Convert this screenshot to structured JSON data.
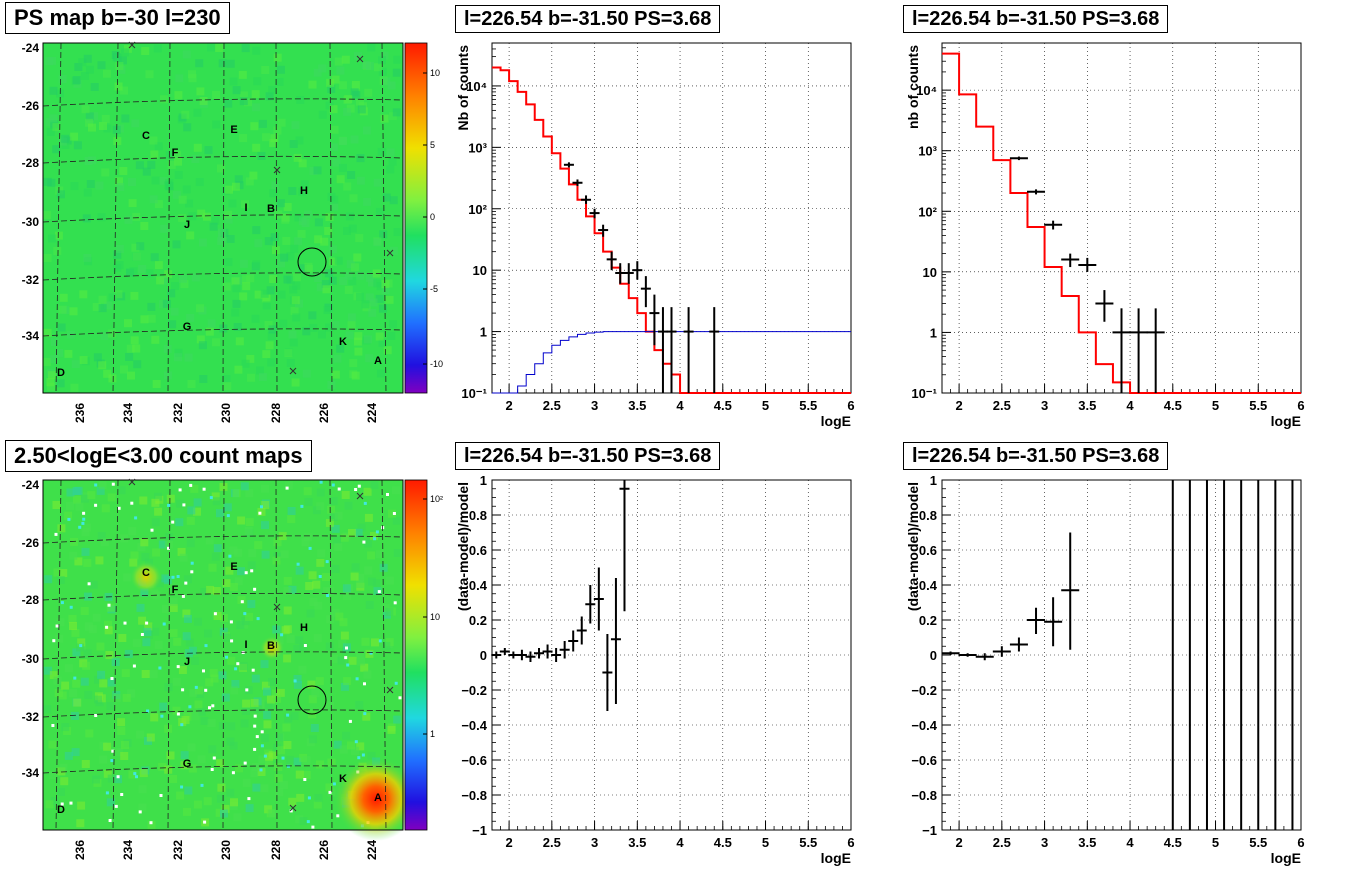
{
  "titles": {
    "ps_map": "PS map b=-30 l=230",
    "count_map": "2.50<logE<3.00 count maps",
    "spec_left": "l=226.54 b=-31.50 PS=3.68",
    "spec_right": "l=226.54 b=-31.50 PS=3.68",
    "resid_left": "l=226.54 b=-31.50 PS=3.68",
    "resid_right": "l=226.54 b=-31.50 PS=3.68"
  },
  "maps": {
    "lat_ticks": [
      "-24",
      "-26",
      "-28",
      "-30",
      "-32",
      "-34"
    ],
    "lon_ticks": [
      "236",
      "234",
      "232",
      "230",
      "228",
      "226",
      "224"
    ],
    "source_labels": [
      "C",
      "E",
      "F",
      "H",
      "I",
      "B",
      "J",
      "G",
      "K",
      "A",
      "D"
    ],
    "ps_colorbar_ticks": [
      "10",
      "5",
      "0",
      "-5",
      "-10"
    ],
    "count_colorbar_ticks": [
      "10²",
      "10",
      "1"
    ],
    "colors": {
      "ps_bg": "#33e050",
      "count_bg": "#3fe04a",
      "hot": "#ff2000"
    }
  },
  "chart_data": [
    {
      "type": "line",
      "title": "l=226.54 b=-31.50 PS=3.68",
      "xlabel": "logE",
      "ylabel": "Nb of counts",
      "xlim": [
        1.8,
        6
      ],
      "ylim": [
        0.1,
        50000
      ],
      "yscale": "log",
      "grid": true,
      "x_ticks": [
        "2",
        "2.5",
        "3",
        "3.5",
        "4",
        "4.5",
        "5",
        "5.5",
        "6"
      ],
      "y_ticks": [
        "10⁻¹",
        "1",
        "10",
        "10²",
        "10³",
        "10⁴"
      ],
      "series": [
        {
          "role": "model",
          "color": "#ff0000",
          "style": "step",
          "edges": [
            1.8,
            1.9,
            2.0,
            2.1,
            2.2,
            2.3,
            2.4,
            2.5,
            2.6,
            2.7,
            2.8,
            2.9,
            3.0,
            3.1,
            3.2,
            3.3,
            3.4,
            3.5,
            3.6,
            3.7,
            3.8,
            3.9,
            4.0,
            6.0
          ],
          "values": [
            20000,
            18000,
            12000,
            8000,
            5000,
            2800,
            1500,
            800,
            450,
            250,
            140,
            75,
            40,
            20,
            11,
            6,
            3.5,
            2,
            1,
            0.5,
            0.3,
            0.2,
            0.1
          ]
        },
        {
          "role": "exposure",
          "color": "#0000cc",
          "style": "step",
          "edges": [
            1.8,
            2.0,
            2.1,
            2.2,
            2.3,
            2.4,
            2.5,
            2.6,
            2.7,
            2.8,
            2.9,
            3.0,
            3.1,
            3.2,
            6.0
          ],
          "values": [
            0.1,
            0.1,
            0.13,
            0.2,
            0.3,
            0.45,
            0.6,
            0.72,
            0.82,
            0.9,
            0.95,
            0.98,
            1.0,
            1.0
          ]
        },
        {
          "role": "data",
          "color": "#000000",
          "points": [
            {
              "x": 2.7,
              "y": 520,
              "lo": 470,
              "hi": 570
            },
            {
              "x": 2.8,
              "y": 265,
              "lo": 235,
              "hi": 300
            },
            {
              "x": 2.9,
              "y": 140,
              "lo": 120,
              "hi": 165
            },
            {
              "x": 3.0,
              "y": 85,
              "lo": 70,
              "hi": 100
            },
            {
              "x": 3.1,
              "y": 45,
              "lo": 35,
              "hi": 55
            },
            {
              "x": 3.2,
              "y": 15,
              "lo": 10,
              "hi": 20
            },
            {
              "x": 3.3,
              "y": 9,
              "lo": 6,
              "hi": 13
            },
            {
              "x": 3.4,
              "y": 9,
              "lo": 6,
              "hi": 13
            },
            {
              "x": 3.5,
              "y": 10,
              "lo": 7,
              "hi": 14
            },
            {
              "x": 3.6,
              "y": 5,
              "lo": 2.5,
              "hi": 8
            },
            {
              "x": 3.7,
              "y": 2,
              "lo": 0.6,
              "hi": 4
            },
            {
              "x": 3.8,
              "y": 1,
              "lo": 0.1,
              "hi": 2.5
            },
            {
              "x": 3.9,
              "y": 1,
              "lo": 0.1,
              "hi": 2.5
            },
            {
              "x": 4.1,
              "y": 1,
              "lo": 0.1,
              "hi": 2.5
            },
            {
              "x": 4.4,
              "y": 1,
              "lo": 0.1,
              "hi": 2.5
            }
          ]
        }
      ]
    },
    {
      "type": "line",
      "title": "l=226.54 b=-31.50 PS=3.68",
      "xlabel": "logE",
      "ylabel": "nb of counts",
      "xlim": [
        1.8,
        6
      ],
      "ylim": [
        0.1,
        60000
      ],
      "yscale": "log",
      "grid": true,
      "x_ticks": [
        "2",
        "2.5",
        "3",
        "3.5",
        "4",
        "4.5",
        "5",
        "5.5",
        "6"
      ],
      "y_ticks": [
        "10⁻¹",
        "1",
        "10",
        "10²",
        "10³",
        "10⁴"
      ],
      "series": [
        {
          "role": "model",
          "color": "#ff0000",
          "style": "step",
          "edges": [
            1.8,
            2.0,
            2.2,
            2.4,
            2.6,
            2.8,
            3.0,
            3.2,
            3.4,
            3.6,
            3.8,
            4.0,
            4.2,
            6.0
          ],
          "values": [
            40000,
            8500,
            2500,
            700,
            200,
            55,
            12,
            4,
            1,
            0.3,
            0.15,
            0.1,
            0.1
          ]
        },
        {
          "role": "data",
          "color": "#000000",
          "points": [
            {
              "x": 2.7,
              "y": 750,
              "lo": 700,
              "hi": 800
            },
            {
              "x": 2.9,
              "y": 210,
              "lo": 190,
              "hi": 230
            },
            {
              "x": 3.1,
              "y": 60,
              "lo": 50,
              "hi": 70
            },
            {
              "x": 3.3,
              "y": 16,
              "lo": 12,
              "hi": 20
            },
            {
              "x": 3.5,
              "y": 13,
              "lo": 10,
              "hi": 17
            },
            {
              "x": 3.7,
              "y": 3,
              "lo": 1.5,
              "hi": 5
            },
            {
              "x": 3.9,
              "y": 1,
              "lo": 0.1,
              "hi": 2.5
            },
            {
              "x": 4.1,
              "y": 1,
              "lo": 0.1,
              "hi": 2.5
            },
            {
              "x": 4.3,
              "y": 1,
              "lo": 0.1,
              "hi": 2.5
            }
          ]
        }
      ]
    },
    {
      "type": "scatter",
      "title": "l=226.54 b=-31.50 PS=3.68",
      "xlabel": "logE",
      "ylabel": "(data-model)/model",
      "xlim": [
        1.8,
        6
      ],
      "ylim": [
        -1,
        1
      ],
      "grid": true,
      "x_ticks": [
        "2",
        "2.5",
        "3",
        "3.5",
        "4",
        "4.5",
        "5",
        "5.5",
        "6"
      ],
      "y_ticks": [
        "1",
        "0.8",
        "0.6",
        "0.4",
        "0.2",
        "0",
        "−0.2",
        "−0.4",
        "−0.6",
        "−0.8",
        "−1"
      ],
      "points": [
        {
          "x": 1.85,
          "y": 0.0,
          "lo": -0.02,
          "hi": 0.02
        },
        {
          "x": 1.95,
          "y": 0.02,
          "lo": 0.0,
          "hi": 0.04
        },
        {
          "x": 2.05,
          "y": 0.0,
          "lo": -0.02,
          "hi": 0.02
        },
        {
          "x": 2.15,
          "y": 0.0,
          "lo": -0.03,
          "hi": 0.03
        },
        {
          "x": 2.25,
          "y": -0.01,
          "lo": -0.04,
          "hi": 0.02
        },
        {
          "x": 2.35,
          "y": 0.01,
          "lo": -0.02,
          "hi": 0.04
        },
        {
          "x": 2.45,
          "y": 0.02,
          "lo": -0.02,
          "hi": 0.06
        },
        {
          "x": 2.55,
          "y": 0.0,
          "lo": -0.04,
          "hi": 0.04
        },
        {
          "x": 2.65,
          "y": 0.03,
          "lo": -0.02,
          "hi": 0.08
        },
        {
          "x": 2.75,
          "y": 0.08,
          "lo": 0.02,
          "hi": 0.14
        },
        {
          "x": 2.85,
          "y": 0.14,
          "lo": 0.06,
          "hi": 0.22
        },
        {
          "x": 2.95,
          "y": 0.29,
          "lo": 0.18,
          "hi": 0.4
        },
        {
          "x": 3.05,
          "y": 0.32,
          "lo": 0.14,
          "hi": 0.5
        },
        {
          "x": 3.15,
          "y": -0.1,
          "lo": -0.32,
          "hi": 0.12
        },
        {
          "x": 3.25,
          "y": 0.09,
          "lo": -0.28,
          "hi": 0.44
        },
        {
          "x": 3.35,
          "y": 0.95,
          "lo": 0.25,
          "hi": 1.0
        }
      ]
    },
    {
      "type": "scatter",
      "title": "l=226.54 b=-31.50 PS=3.68",
      "xlabel": "logE",
      "ylabel": "(data-model)/model",
      "xlim": [
        1.8,
        6
      ],
      "ylim": [
        -1,
        1
      ],
      "grid": true,
      "x_ticks": [
        "2",
        "2.5",
        "3",
        "3.5",
        "4",
        "4.5",
        "5",
        "5.5",
        "6"
      ],
      "y_ticks": [
        "1",
        "0.8",
        "0.6",
        "0.4",
        "0.2",
        "0",
        "−0.2",
        "−0.4",
        "−0.6",
        "−0.8",
        "−1"
      ],
      "points": [
        {
          "x": 1.9,
          "y": 0.01,
          "lo": 0.0,
          "hi": 0.02
        },
        {
          "x": 2.1,
          "y": 0.0,
          "lo": -0.01,
          "hi": 0.01
        },
        {
          "x": 2.3,
          "y": -0.01,
          "lo": -0.03,
          "hi": 0.01
        },
        {
          "x": 2.5,
          "y": 0.02,
          "lo": -0.01,
          "hi": 0.05
        },
        {
          "x": 2.7,
          "y": 0.06,
          "lo": 0.02,
          "hi": 0.1
        },
        {
          "x": 2.9,
          "y": 0.2,
          "lo": 0.12,
          "hi": 0.27
        },
        {
          "x": 3.1,
          "y": 0.19,
          "lo": 0.05,
          "hi": 0.33
        },
        {
          "x": 3.3,
          "y": 0.37,
          "lo": 0.03,
          "hi": 0.7
        }
      ],
      "full_range_bars_x": [
        4.5,
        4.7,
        4.9,
        5.1,
        5.3,
        5.5,
        5.7,
        5.9
      ]
    }
  ]
}
